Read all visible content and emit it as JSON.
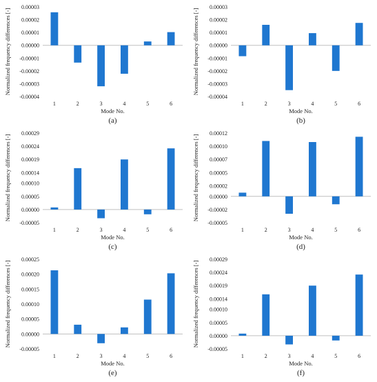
{
  "figure": {
    "bar_color": "#1f77d0",
    "axis_color": "#bfbfbf",
    "text_color": "#222222"
  },
  "chart_data": [
    {
      "type": "bar",
      "caption": "(a)",
      "xlabel": "Mode No.",
      "ylabel": "Normalized frequency differences [-]",
      "categories": [
        "1",
        "2",
        "3",
        "4",
        "5",
        "6"
      ],
      "values": [
        2.58e-05,
        -1.35e-05,
        -3.2e-05,
        -2.22e-05,
        3e-06,
        1.03e-05
      ],
      "ylim": [
        -4e-05,
        3e-05
      ],
      "ticks": [
        "0.00003",
        "0.00002",
        "0.00001",
        "0.00000",
        "-0.00001",
        "-0.00002",
        "-0.00003",
        "-0.00004"
      ],
      "tick_values": [
        3e-05,
        2e-05,
        1e-05,
        0,
        -1e-05,
        -2e-05,
        -3e-05,
        -4e-05
      ]
    },
    {
      "type": "bar",
      "caption": "(b)",
      "xlabel": "Mode No.",
      "ylabel": "Normalized frequency differences [-]",
      "categories": [
        "1",
        "2",
        "3",
        "4",
        "5",
        "6"
      ],
      "values": [
        -8.5e-06,
        1.6e-05,
        -3.5e-05,
        9.5e-06,
        -2e-05,
        1.75e-05
      ],
      "ylim": [
        -4e-05,
        3e-05
      ],
      "ticks": [
        "0.00003",
        "0.00002",
        "0.00001",
        "0.00000",
        "-0.00001",
        "-0.00002",
        "-0.00003",
        "-0.00004"
      ],
      "tick_values": [
        3e-05,
        2e-05,
        1e-05,
        0,
        -1e-05,
        -2e-05,
        -3e-05,
        -4e-05
      ]
    },
    {
      "type": "bar",
      "caption": "(c)",
      "xlabel": "Mode No.",
      "ylabel": "Normalized frequency differences [-]",
      "categories": [
        "1",
        "2",
        "3",
        "4",
        "5",
        "6"
      ],
      "values": [
        8e-06,
        0.000157,
        -3.3e-05,
        0.00019,
        -1.8e-05,
        0.000232
      ],
      "ylim": [
        -5e-05,
        0.00029
      ],
      "ticks": [
        "0.00029",
        "0.00024",
        "0.00019",
        "0.00014",
        "0.00010",
        "0.00005",
        "0.00000",
        "-0.00005"
      ],
      "tick_values": [
        0.00029,
        0.00024,
        0.00019,
        0.00014,
        0.0001,
        5e-05,
        0,
        -5e-05
      ]
    },
    {
      "type": "bar",
      "caption": "(d)",
      "xlabel": "Mode No.",
      "ylabel": "Normalized frequency differences [-]",
      "categories": [
        "1",
        "2",
        "3",
        "4",
        "5",
        "6"
      ],
      "values": [
        7e-06,
        0.000105,
        -3.3e-05,
        0.000103,
        -1.5e-05,
        0.000113
      ],
      "ylim": [
        -5e-05,
        0.00012
      ],
      "ticks": [
        "0.00012",
        "0.00010",
        "0.00007",
        "0.00005",
        "0.00002",
        "0.00000",
        "-0.00002",
        "-0.00005"
      ],
      "tick_values": [
        0.00012,
        9.5e-05,
        7e-05,
        4.5e-05,
        2e-05,
        0,
        -2.5e-05,
        -5e-05
      ]
    },
    {
      "type": "bar",
      "caption": "(e)",
      "xlabel": "Mode No.",
      "ylabel": "Normalized frequency differences [-]",
      "categories": [
        "1",
        "2",
        "3",
        "4",
        "5",
        "6"
      ],
      "values": [
        0.000213,
        3.1e-05,
        -3.1e-05,
        2.2e-05,
        0.000115,
        0.000203
      ],
      "ylim": [
        -5e-05,
        0.00025
      ],
      "ticks": [
        "0.00025",
        "0.00020",
        "0.00015",
        "0.00010",
        "0.00005",
        "0.00000",
        "-0.00005"
      ],
      "tick_values": [
        0.00025,
        0.0002,
        0.00015,
        0.0001,
        5e-05,
        0,
        -5e-05
      ]
    },
    {
      "type": "bar",
      "caption": "(f)",
      "xlabel": "Mode No.",
      "ylabel": "Normalized frequency differences [-]",
      "categories": [
        "1",
        "2",
        "3",
        "4",
        "5",
        "6"
      ],
      "values": [
        8e-06,
        0.000157,
        -3.3e-05,
        0.00019,
        -1.8e-05,
        0.000232
      ],
      "ylim": [
        -5e-05,
        0.00029
      ],
      "ticks": [
        "0.00029",
        "0.00024",
        "0.00019",
        "0.00014",
        "0.00010",
        "0.00005",
        "0.00000",
        "-0.00005"
      ],
      "tick_values": [
        0.00029,
        0.00024,
        0.00019,
        0.00014,
        0.0001,
        5e-05,
        0,
        -5e-05
      ]
    }
  ]
}
